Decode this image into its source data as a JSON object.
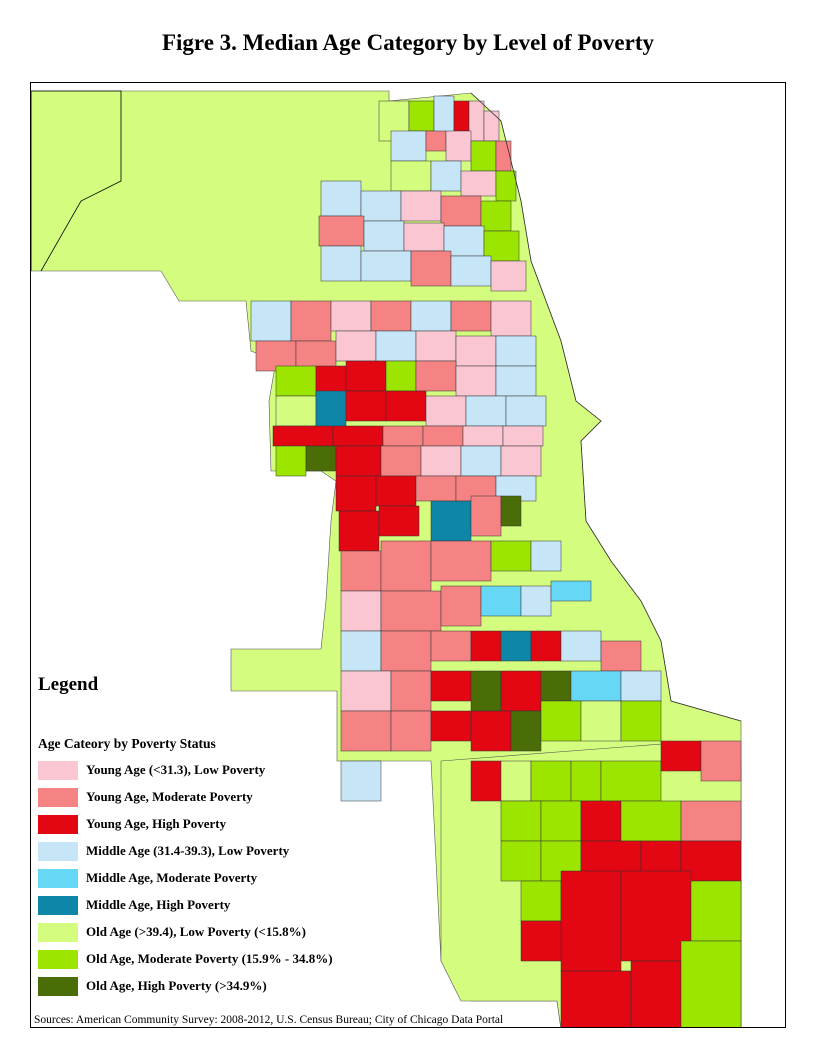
{
  "title": "Figre 3. Median Age Category by Level of Poverty",
  "legend": {
    "heading": "Legend",
    "subheading": "Age Cateory by Poverty Status",
    "items": [
      {
        "key": "yl",
        "label": "Young Age (<31.3), Low Poverty",
        "color": "#f9c6d2"
      },
      {
        "key": "ym",
        "label": "Young Age, Moderate Poverty",
        "color": "#f58383"
      },
      {
        "key": "yh",
        "label": "Young Age, High Poverty",
        "color": "#e30613"
      },
      {
        "key": "ml",
        "label": "Middle Age (31.4-39.3), Low Poverty",
        "color": "#c6e6f7"
      },
      {
        "key": "mm",
        "label": "Middle Age, Moderate Poverty",
        "color": "#66d7f5"
      },
      {
        "key": "mh",
        "label": "Middle Age, High Poverty",
        "color": "#0e86a8"
      },
      {
        "key": "ol",
        "label": "Old Age (>39.4), Low Poverty (<15.8%)",
        "color": "#d4fc7e"
      },
      {
        "key": "om",
        "label": "Old Age, Moderate Poverty (15.9% - 34.8%)",
        "color": "#9be501"
      },
      {
        "key": "oh",
        "label": "Old Age, High Poverty (>34.9%)",
        "color": "#4a6d08"
      }
    ]
  },
  "source": "Sources: American Community Survey: 2008-2012, U.S. Census Bureau; City of Chicago Data Portal"
}
